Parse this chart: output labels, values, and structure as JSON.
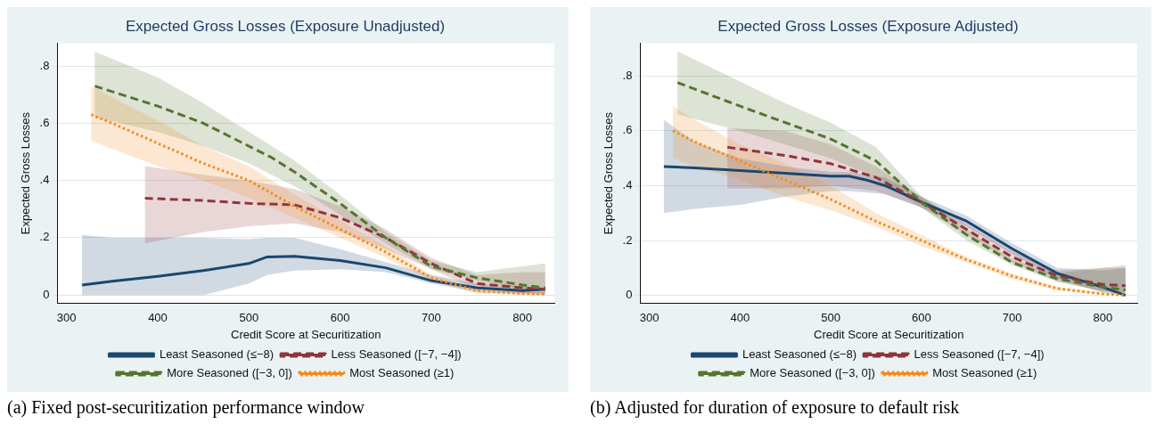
{
  "chart_data": [
    {
      "type": "line",
      "title": "Expected Gross Losses (Exposure Unadjusted)",
      "xlabel": "Credit Score at Securitization",
      "ylabel": "Expected Gross Losses",
      "xlim": [
        290,
        835
      ],
      "ylim": [
        -0.03,
        0.88
      ],
      "xticks": [
        300,
        400,
        500,
        600,
        700,
        800
      ],
      "yticks": [
        {
          "value": 0,
          "label": "0"
        },
        {
          "value": 0.2,
          "label": ".2"
        },
        {
          "value": 0.4,
          "label": ".4"
        },
        {
          "value": 0.6,
          "label": ".6"
        },
        {
          "value": 0.8,
          "label": ".8"
        }
      ],
      "grid": "y",
      "legend": "bottom",
      "annotations": [
        "(a) Fixed post-securitization performance window"
      ],
      "series": [
        {
          "name": "Least Seasoned (≤−8)",
          "color": "#1a476f",
          "line_style": "solid",
          "x": [
            317,
            350,
            400,
            450,
            500,
            520,
            550,
            600,
            650,
            700,
            750,
            800,
            825
          ],
          "values": [
            0.035,
            0.048,
            0.065,
            0.085,
            0.11,
            0.133,
            0.135,
            0.12,
            0.095,
            0.05,
            0.025,
            0.015,
            0.02
          ],
          "lower": [
            0,
            0,
            0,
            0,
            0.04,
            0.07,
            0.085,
            0.09,
            0.08,
            0.04,
            0.01,
            0.005,
            0.005
          ],
          "upper": [
            0.21,
            0.2,
            0.2,
            0.2,
            0.195,
            0.2,
            0.2,
            0.16,
            0.115,
            0.07,
            0.04,
            0.03,
            0.025
          ]
        },
        {
          "name": "Less Seasoned ([−7, −4])",
          "color": "#90353b",
          "line_style": "dashed",
          "x": [
            386,
            450,
            500,
            550,
            600,
            650,
            700,
            750,
            800,
            825
          ],
          "values": [
            0.338,
            0.33,
            0.32,
            0.315,
            0.27,
            0.2,
            0.11,
            0.04,
            0.025,
            0.02
          ],
          "lower": [
            0.18,
            0.22,
            0.24,
            0.25,
            0.22,
            0.16,
            0.09,
            0.02,
            0.005,
            0
          ],
          "upper": [
            0.45,
            0.42,
            0.4,
            0.37,
            0.31,
            0.23,
            0.13,
            0.07,
            0.08,
            0.08
          ]
        },
        {
          "name": "More Seasoned ([−3, 0])",
          "color": "#55752f",
          "line_style": "dashed",
          "x": [
            331,
            400,
            450,
            500,
            525,
            550,
            600,
            650,
            700,
            750,
            800,
            825
          ],
          "values": [
            0.73,
            0.66,
            0.6,
            0.52,
            0.48,
            0.43,
            0.32,
            0.2,
            0.1,
            0.06,
            0.035,
            0.025
          ],
          "lower": [
            0.62,
            0.57,
            0.52,
            0.46,
            0.42,
            0.38,
            0.28,
            0.18,
            0.09,
            0.05,
            0.02,
            0.015
          ],
          "upper": [
            0.85,
            0.76,
            0.67,
            0.57,
            0.52,
            0.47,
            0.35,
            0.22,
            0.12,
            0.08,
            0.1,
            0.11
          ]
        },
        {
          "name": "Most Seasoned (≥1)",
          "color": "#f28b1e",
          "line_style": "dotted",
          "x": [
            327,
            350,
            400,
            450,
            500,
            550,
            600,
            650,
            700,
            750,
            800,
            825
          ],
          "values": [
            0.63,
            0.6,
            0.53,
            0.46,
            0.4,
            0.31,
            0.23,
            0.15,
            0.06,
            0.015,
            0.005,
            0.003
          ],
          "lower": [
            0.54,
            0.51,
            0.45,
            0.4,
            0.34,
            0.27,
            0.2,
            0.13,
            0.05,
            0.005,
            0,
            0
          ],
          "upper": [
            0.73,
            0.69,
            0.61,
            0.52,
            0.45,
            0.35,
            0.26,
            0.17,
            0.07,
            0.025,
            0.01,
            0.01
          ]
        }
      ]
    },
    {
      "type": "line",
      "title": "Expected Gross Losses (Exposure Adjusted)",
      "xlabel": "Credit Score at Securitization",
      "ylabel": "Expected Gross Losses",
      "xlim": [
        290,
        838
      ],
      "ylim": [
        -0.03,
        0.92
      ],
      "xticks": [
        300,
        400,
        500,
        600,
        700,
        800
      ],
      "yticks": [
        {
          "value": 0,
          "label": "0"
        },
        {
          "value": 0.2,
          "label": ".2"
        },
        {
          "value": 0.4,
          "label": ".4"
        },
        {
          "value": 0.6,
          "label": ".6"
        },
        {
          "value": 0.8,
          "label": ".8"
        }
      ],
      "grid": "y",
      "legend": "bottom",
      "annotations": [
        "(b) Adjusted for duration of exposure to default risk"
      ],
      "series": [
        {
          "name": "Least Seasoned (≤−8)",
          "color": "#1a476f",
          "line_style": "solid",
          "x": [
            316,
            350,
            400,
            450,
            500,
            520,
            540,
            560,
            600,
            650,
            700,
            750,
            800,
            825
          ],
          "values": [
            0.47,
            0.465,
            0.455,
            0.445,
            0.435,
            0.435,
            0.42,
            0.4,
            0.34,
            0.27,
            0.17,
            0.08,
            0.03,
            0
          ],
          "lower": [
            0.3,
            0.315,
            0.33,
            0.36,
            0.38,
            0.38,
            0.375,
            0.37,
            0.32,
            0.25,
            0.15,
            0.06,
            0.01,
            0
          ],
          "upper": [
            0.64,
            0.56,
            0.5,
            0.47,
            0.45,
            0.45,
            0.44,
            0.43,
            0.36,
            0.29,
            0.19,
            0.1,
            0.09,
            0.1
          ]
        },
        {
          "name": "Less Seasoned ([−7, −4])",
          "color": "#90353b",
          "line_style": "dashed",
          "x": [
            386,
            450,
            500,
            550,
            600,
            650,
            700,
            750,
            800,
            825
          ],
          "values": [
            0.54,
            0.51,
            0.48,
            0.43,
            0.34,
            0.24,
            0.14,
            0.07,
            0.04,
            0.035
          ],
          "lower": [
            0.39,
            0.39,
            0.4,
            0.38,
            0.32,
            0.22,
            0.12,
            0.05,
            0.015,
            0.01
          ],
          "upper": [
            0.61,
            0.6,
            0.55,
            0.47,
            0.36,
            0.26,
            0.16,
            0.09,
            0.1,
            0.11
          ]
        },
        {
          "name": "More Seasoned ([−3, 0])",
          "color": "#55752f",
          "line_style": "dashed",
          "x": [
            331,
            400,
            450,
            500,
            550,
            600,
            650,
            700,
            750,
            800,
            825
          ],
          "values": [
            0.776,
            0.69,
            0.63,
            0.57,
            0.49,
            0.34,
            0.22,
            0.12,
            0.06,
            0.03,
            0.02
          ],
          "lower": [
            0.66,
            0.6,
            0.55,
            0.5,
            0.43,
            0.32,
            0.2,
            0.11,
            0.05,
            0.015,
            0.01
          ],
          "upper": [
            0.89,
            0.78,
            0.7,
            0.63,
            0.54,
            0.36,
            0.24,
            0.13,
            0.08,
            0.1,
            0.1
          ]
        },
        {
          "name": "Most Seasoned (≥1)",
          "color": "#f28b1e",
          "line_style": "dotted",
          "x": [
            326,
            350,
            400,
            450,
            500,
            550,
            600,
            650,
            700,
            750,
            800,
            825
          ],
          "values": [
            0.6,
            0.56,
            0.49,
            0.42,
            0.35,
            0.27,
            0.2,
            0.13,
            0.07,
            0.025,
            0.005,
            0
          ],
          "lower": [
            0.5,
            0.47,
            0.42,
            0.36,
            0.31,
            0.25,
            0.18,
            0.12,
            0.06,
            0.018,
            0.003,
            0
          ],
          "upper": [
            0.69,
            0.64,
            0.55,
            0.48,
            0.4,
            0.3,
            0.22,
            0.14,
            0.08,
            0.03,
            0.01,
            0.01
          ]
        }
      ]
    }
  ]
}
